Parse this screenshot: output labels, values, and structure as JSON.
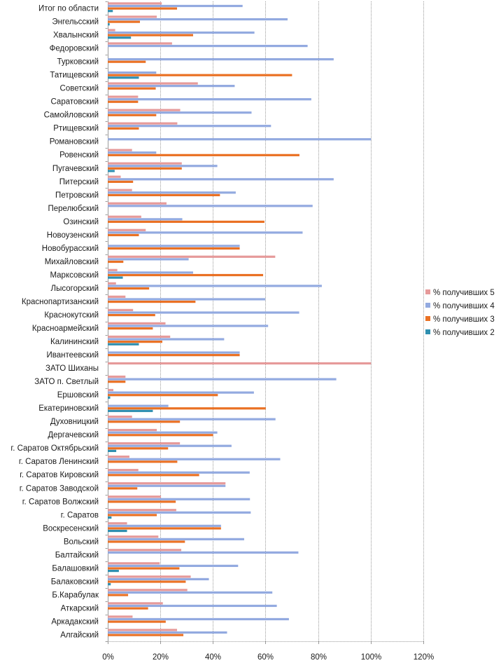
{
  "chart_data": {
    "type": "bar",
    "orientation": "horizontal",
    "title": "",
    "xlabel": "",
    "ylabel": "",
    "xlim": [
      0,
      120
    ],
    "x_ticks": [
      "0%",
      "20%",
      "40%",
      "60%",
      "80%",
      "100%",
      "120%"
    ],
    "x_tick_values": [
      0,
      20,
      40,
      60,
      80,
      100,
      120
    ],
    "grid": "vertical",
    "legend_position": "right",
    "categories": [
      "Итог по области",
      "Энгельсский",
      "Хвалынский",
      "Федоровский",
      "Турковский",
      "Татищевский",
      "Советский",
      "Саратовский",
      "Самойловский",
      "Ртищевский",
      "Романовский",
      "Ровенский",
      "Пугачевский",
      "Питерский",
      "Петровский",
      "Перелюбский",
      "Озинский",
      "Новоузенский",
      "Новобурасский",
      "Михайловский",
      "Марксовский",
      "Лысогорский",
      "Краснопартизанский",
      "Краснокутский",
      "Красноармейский",
      "Калининский",
      "Ивантеевский",
      "ЗАТО Шиханы",
      "ЗАТО п. Светлый",
      "Ершовский",
      "Екатериновский",
      "Духовницкий",
      "Дергачевский",
      "г. Саратов Октябрьский",
      "г. Саратов Ленинский",
      "г. Саратов Кировский",
      "г. Саратов Заводской",
      "г. Саратов Волжский",
      "г. Саратов",
      "Воскресенский",
      "Вольский",
      "Балтайский",
      "Балашовкий",
      "Балаковский",
      "Б.Карабулак",
      "Аткарский",
      "Аркадакский",
      "Алгайский"
    ],
    "series": [
      {
        "name": "% получивших 5",
        "color": "#e69a9a",
        "values": [
          20.5,
          18.6,
          2.8,
          24.4,
          0,
          0,
          34.2,
          11.5,
          27.5,
          26.4,
          0,
          9.2,
          28.1,
          4.9,
          9.2,
          22.3,
          12.7,
          14.4,
          0,
          63.6,
          3.6,
          3.1,
          6.7,
          9.6,
          21.9,
          23.7,
          0,
          100,
          6.7,
          2.1,
          0,
          9.2,
          18.6,
          27.4,
          8.2,
          11.6,
          44.7,
          20.2,
          26.0,
          7.3,
          19.2,
          27.9,
          19.7,
          31.5,
          30.2,
          20.9,
          9.4,
          26.3
        ]
      },
      {
        "name": "% получивших 4",
        "color": "#93aae0",
        "values": [
          51.2,
          68.3,
          55.7,
          75.9,
          85.8,
          18.4,
          48.2,
          77.3,
          54.6,
          62.0,
          100,
          18.4,
          41.6,
          85.8,
          48.6,
          77.8,
          28.3,
          74.0,
          50.1,
          30.7,
          32.4,
          81.3,
          59.8,
          72.7,
          60.9,
          44.2,
          50.1,
          0,
          86.8,
          55.5,
          23.0,
          63.7,
          41.6,
          47.0,
          65.5,
          53.9,
          44.7,
          54.0,
          54.3,
          43.0,
          51.8,
          72.4,
          49.5,
          38.4,
          62.5,
          64.2,
          68.8,
          45.3
        ]
      },
      {
        "name": "% получивших 3",
        "color": "#ea7124",
        "values": [
          26.3,
          12.2,
          32.4,
          0,
          14.4,
          70.0,
          18.2,
          11.5,
          18.4,
          11.8,
          0,
          72.8,
          28.1,
          9.6,
          42.6,
          0,
          59.5,
          11.8,
          50.1,
          5.9,
          59.0,
          15.7,
          33.3,
          18.0,
          17.1,
          20.7,
          50.1,
          0,
          6.7,
          41.8,
          60.0,
          27.4,
          40.0,
          22.9,
          26.4,
          34.7,
          11.2,
          25.8,
          18.6,
          43.0,
          29.3,
          0,
          27.2,
          29.6,
          7.7,
          15.3,
          22.0,
          28.7
        ]
      },
      {
        "name": "% получивших 2",
        "color": "#2f8fb0",
        "values": [
          1.9,
          0.7,
          8.8,
          0,
          0,
          11.8,
          0,
          0,
          0,
          0,
          0,
          0,
          2.6,
          0,
          0,
          0,
          0,
          0,
          0,
          0,
          5.7,
          0,
          0,
          0,
          0,
          11.8,
          0,
          0,
          0,
          0.9,
          17.1,
          0,
          0,
          3.2,
          0,
          0,
          0,
          0,
          1.4,
          7.3,
          0,
          0,
          4.2,
          1.1,
          0,
          0,
          0,
          0
        ]
      }
    ]
  }
}
